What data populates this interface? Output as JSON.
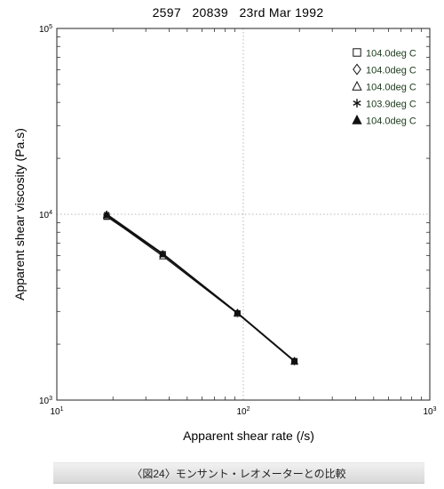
{
  "chart_data": {
    "type": "line",
    "title": "2597   20839   23rd Mar 1992",
    "xlabel": "Apparent shear rate (/s)",
    "ylabel": "Apparent shear viscosity (Pa.s)",
    "x_scale": "log",
    "y_scale": "log",
    "xlim": [
      10,
      1000
    ],
    "ylim": [
      1000,
      100000
    ],
    "x_ticks": [
      {
        "base": "10",
        "exp": "1"
      },
      {
        "base": "10",
        "exp": "2"
      },
      {
        "base": "10",
        "exp": "3"
      }
    ],
    "y_ticks": [
      {
        "base": "10",
        "exp": "3"
      },
      {
        "base": "10",
        "exp": "4"
      },
      {
        "base": "10",
        "exp": "5"
      }
    ],
    "grid": "dotted at decades",
    "legend_position": "top-right",
    "series": [
      {
        "name": "104.0deg C",
        "marker": "square-open",
        "x": [
          18.5,
          37,
          93,
          188
        ],
        "y": [
          9700,
          6100,
          2930,
          1620
        ]
      },
      {
        "name": "104.0deg C",
        "marker": "diamond-open",
        "x": [
          18.5,
          37,
          93,
          188
        ],
        "y": [
          9900,
          6050,
          2940,
          1620
        ]
      },
      {
        "name": "104.0deg C",
        "marker": "triangle-open",
        "x": [
          18.5,
          37,
          93,
          188
        ],
        "y": [
          9800,
          5950,
          2920,
          1610
        ]
      },
      {
        "name": "103.9deg C",
        "marker": "asterisk",
        "x": [
          18.5,
          37,
          93,
          188
        ],
        "y": [
          10050,
          6150,
          2960,
          1630
        ]
      },
      {
        "name": "104.0deg C",
        "marker": "triangle-filled",
        "x": [
          18.5,
          37,
          93,
          188
        ],
        "y": [
          9950,
          6100,
          2950,
          1625
        ]
      }
    ]
  },
  "caption": "〈図24〉モンサント・レオメーターとの比較"
}
